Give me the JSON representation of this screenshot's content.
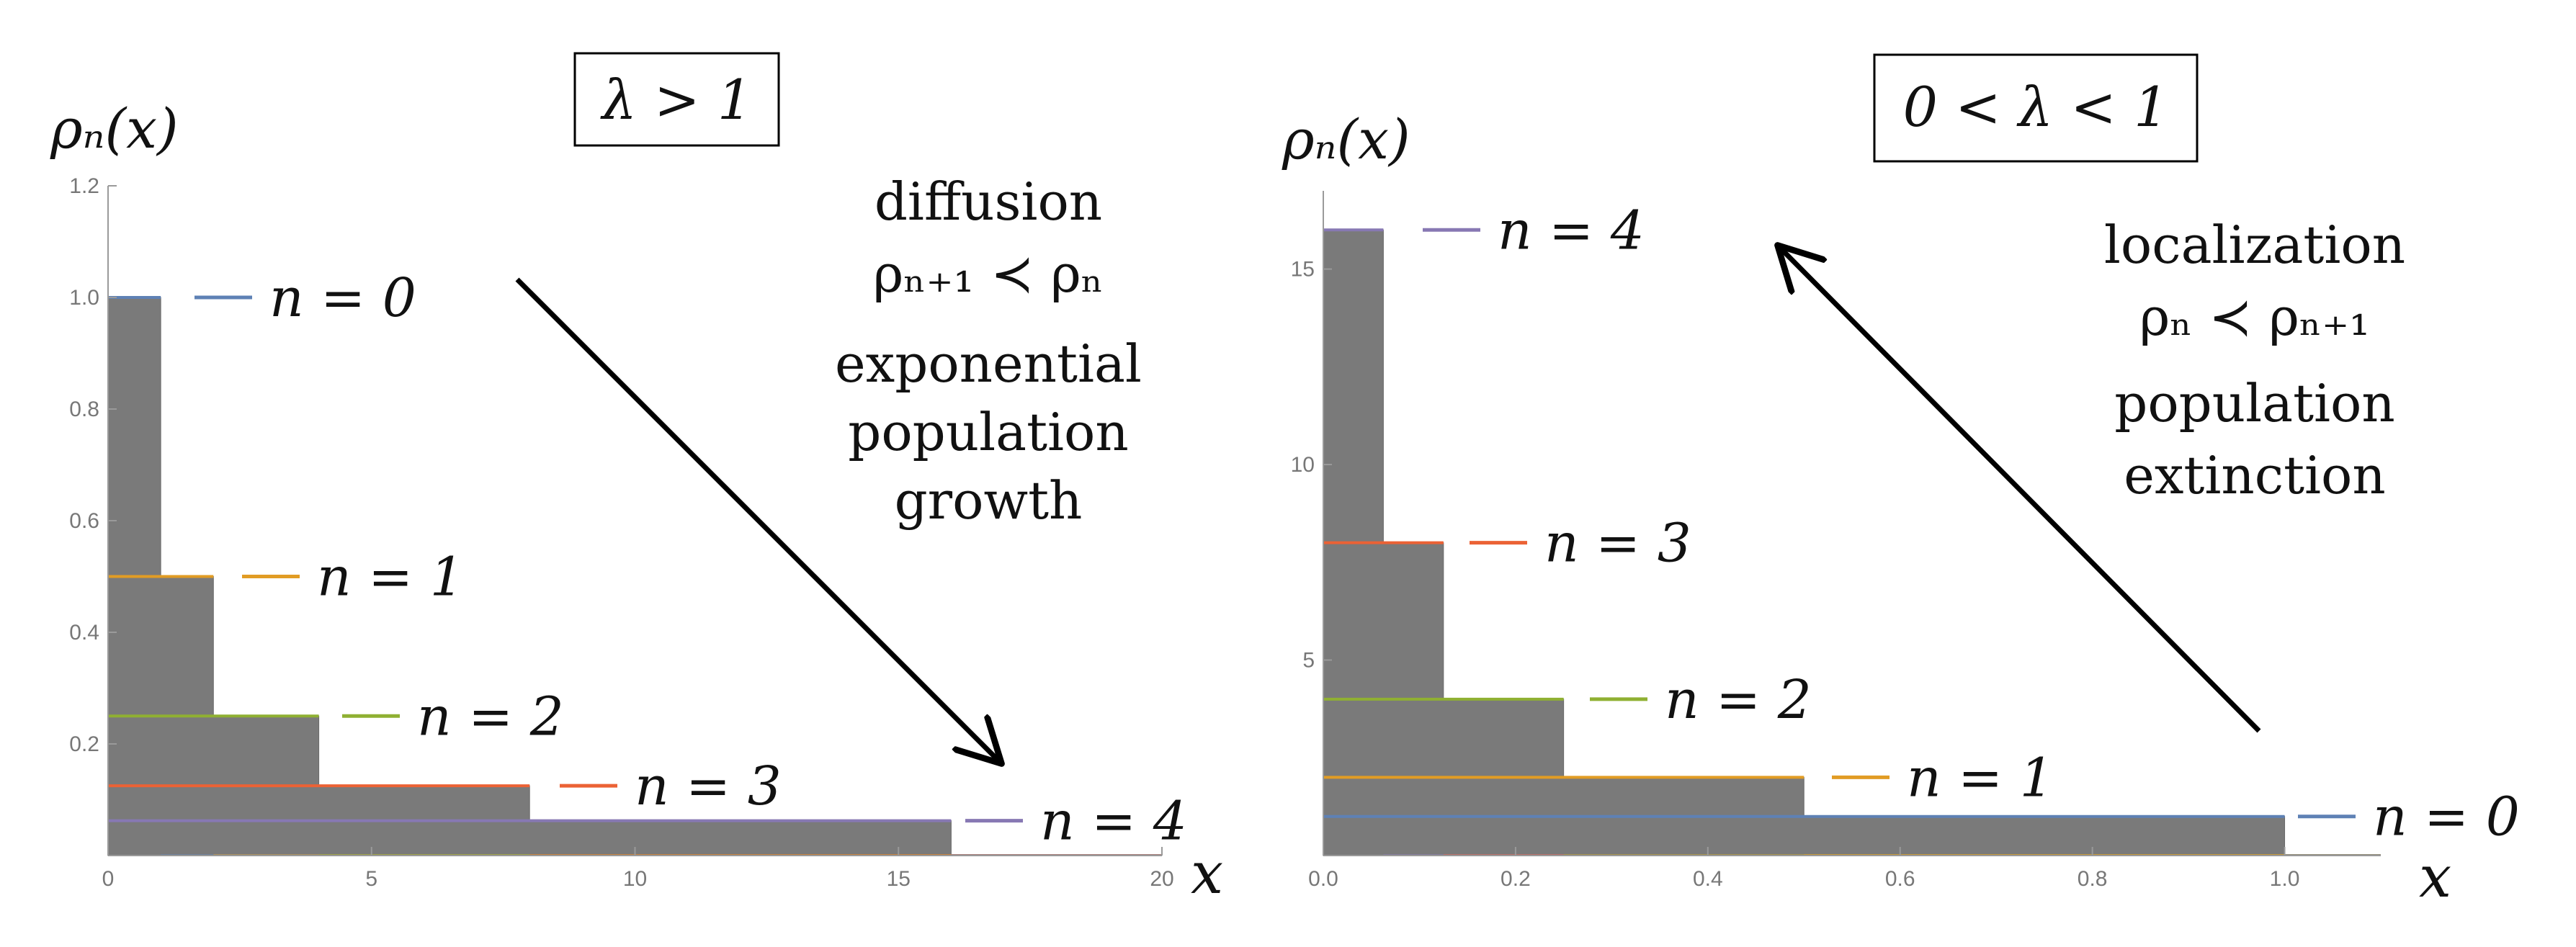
{
  "colors": {
    "bar_fill": "#7a7a7a",
    "bar_edge": "#6a6a6a",
    "axis": "#9a9a9a",
    "arrow": "#000000",
    "n0": "#5e81b5",
    "n1": "#e19c24",
    "n2": "#8fb032",
    "n3": "#eb6235",
    "n4": "#8778b3"
  },
  "chart_data": [
    {
      "type": "bar",
      "subtype": "step-histogram",
      "box_label": "λ > 1",
      "ylabel": "ρₙ(x)",
      "xlabel": "x",
      "xlim": [
        0,
        20
      ],
      "ylim": [
        0,
        1.2
      ],
      "x_ticks": [
        "0",
        "5",
        "10",
        "15",
        "20"
      ],
      "y_ticks": [
        "0.2",
        "0.4",
        "0.6",
        "0.8",
        "1.0",
        "1.2"
      ],
      "x_tick_values": [
        0,
        5,
        10,
        15,
        20
      ],
      "y_tick_values": [
        0.2,
        0.4,
        0.6,
        0.8,
        1.0,
        1.2
      ],
      "series": [
        {
          "name": "n = 0",
          "color": "n0",
          "x_start": 0,
          "x_end": 1,
          "value": 1.0
        },
        {
          "name": "n = 1",
          "color": "n1",
          "x_start": 0,
          "x_end": 2,
          "value": 0.5
        },
        {
          "name": "n = 2",
          "color": "n2",
          "x_start": 0,
          "x_end": 4,
          "value": 0.25
        },
        {
          "name": "n = 3",
          "color": "n3",
          "x_start": 0,
          "x_end": 8,
          "value": 0.125
        },
        {
          "name": "n = 4",
          "color": "n4",
          "x_start": 0,
          "x_end": 16,
          "value": 0.0625
        }
      ],
      "annotations": [
        "diffusion",
        "ρₙ₊₁ ≺ ρₙ",
        "exponential",
        "population",
        "growth"
      ]
    },
    {
      "type": "bar",
      "subtype": "step-histogram",
      "box_label": "0 < λ < 1",
      "ylabel": "ρₙ(x)",
      "xlabel": "x",
      "xlim": [
        0,
        1.1
      ],
      "ylim": [
        0,
        17
      ],
      "x_ticks": [
        "0.0",
        "0.2",
        "0.4",
        "0.6",
        "0.8",
        "1.0"
      ],
      "y_ticks": [
        "5",
        "10",
        "15"
      ],
      "x_tick_values": [
        0,
        0.2,
        0.4,
        0.6,
        0.8,
        1.0
      ],
      "y_tick_values": [
        5,
        10,
        15
      ],
      "series": [
        {
          "name": "n = 4",
          "color": "n4",
          "x_start": 0,
          "x_end": 0.0625,
          "value": 16
        },
        {
          "name": "n = 3",
          "color": "n3",
          "x_start": 0,
          "x_end": 0.125,
          "value": 8
        },
        {
          "name": "n = 2",
          "color": "n2",
          "x_start": 0,
          "x_end": 0.25,
          "value": 4
        },
        {
          "name": "n = 1",
          "color": "n1",
          "x_start": 0,
          "x_end": 0.5,
          "value": 2
        },
        {
          "name": "n = 0",
          "color": "n0",
          "x_start": 0,
          "x_end": 1.0,
          "value": 1
        }
      ],
      "annotations": [
        "localization",
        "ρₙ ≺ ρₙ₊₁",
        "population",
        "extinction"
      ]
    }
  ]
}
